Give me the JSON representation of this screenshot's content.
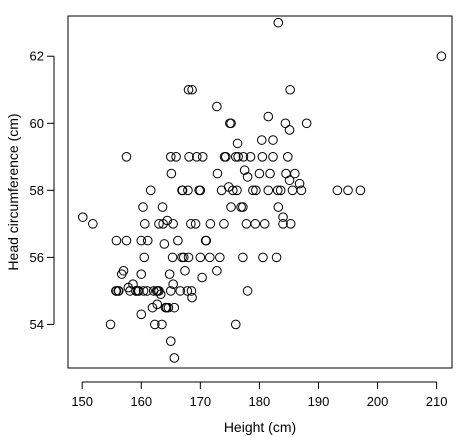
{
  "chart_data": {
    "type": "scatter",
    "title": "",
    "xlabel": "Height (cm)",
    "ylabel": "Head circumference (cm)",
    "xlim": [
      147.6,
      212.6
    ],
    "ylim": [
      52.7,
      63.2
    ],
    "xticks": [
      150,
      160,
      170,
      180,
      190,
      200,
      210
    ],
    "yticks": [
      54,
      56,
      58,
      60,
      62
    ],
    "grid": false,
    "legend": "none",
    "marker": "open-circle",
    "colors": {
      "marker": "#000000",
      "axis": "#000000",
      "background": "#ffffff"
    },
    "x": [
      150.1,
      151.8,
      154.8,
      155.7,
      155.8,
      156.7,
      157.8,
      157.5,
      155.8,
      156.2,
      157.5,
      158.1,
      158.6,
      159.1,
      159.1,
      160.0,
      159.6,
      160.4,
      160.0,
      160.0,
      160.3,
      160.6,
      161.1,
      161.6,
      162.1,
      162.8,
      162.7,
      163.3,
      163.7,
      163.6,
      163.9,
      164.4,
      163.5,
      162.3,
      162.6,
      163.0,
      164.3,
      164.8,
      165.0,
      165.3,
      165.6,
      165.0,
      165.4,
      165.9,
      166.2,
      166.9,
      167.0,
      167.2,
      167.4,
      167.8,
      168.0,
      168.4,
      168.6,
      169.2,
      169.4,
      169.8,
      170.0,
      170.3,
      170.9,
      171.6,
      171.7,
      172.8,
      173.3,
      173.6,
      174.3,
      174.8,
      175.2,
      175.5,
      176.0,
      176.3,
      176.9,
      177.2,
      177.5,
      178.0,
      178.5,
      178.9,
      179.3,
      179.4,
      180.0,
      180.4,
      180.6,
      180.9,
      181.5,
      181.8,
      182.3,
      182.9,
      183.2,
      183.6,
      184.0,
      184.4,
      184.8,
      185.1,
      185.3,
      185.6,
      186.0,
      186.8,
      187.1,
      188.0,
      193.2,
      195.0,
      197.1,
      210.8,
      172.8,
      168.6,
      168.0,
      183.2,
      185.2,
      176.0,
      178.0,
      175.2,
      164.6,
      165.6,
      168.1,
      167.9,
      177.2,
      177.8,
      172.9,
      170.4,
      174.1,
      176.2,
      180.5,
      181.5,
      182.3,
      183.1,
      184.0,
      184.5,
      185.1,
      174.0,
      170.0,
      171.0,
      168.5,
      166.6,
      165.4,
      165.0,
      164.1,
      163.0,
      161.9,
      161.0,
      160.5,
      159.4,
      157.0,
      156.1,
      165.1,
      166.9,
      175.0,
      176.4,
      177.3
    ],
    "y": [
      57.2,
      57.0,
      54.0,
      55.0,
      56.5,
      55.5,
      55.1,
      59.0,
      55.0,
      55.0,
      56.5,
      55.0,
      55.2,
      55.0,
      55.0,
      55.5,
      55.0,
      55.0,
      54.3,
      56.5,
      57.5,
      57.0,
      56.5,
      58.0,
      55.0,
      55.0,
      54.6,
      54.9,
      57.0,
      57.5,
      56.4,
      57.1,
      54.0,
      54.0,
      55.0,
      57.0,
      54.5,
      55.5,
      59.0,
      56.0,
      53.0,
      53.5,
      57.0,
      59.0,
      56.5,
      56.0,
      58.0,
      56.0,
      55.6,
      55.0,
      56.0,
      57.0,
      54.8,
      57.0,
      59.0,
      58.0,
      56.0,
      55.4,
      56.5,
      56.0,
      57.0,
      55.6,
      56.0,
      58.0,
      59.0,
      58.1,
      57.5,
      58.0,
      59.0,
      59.4,
      57.5,
      56.0,
      58.6,
      58.4,
      59.0,
      58.0,
      57.0,
      58.0,
      58.5,
      59.5,
      56.0,
      57.0,
      58.0,
      58.5,
      59.0,
      56.0,
      57.5,
      58.0,
      57.0,
      60.0,
      59.0,
      59.8,
      57.0,
      58.0,
      58.5,
      58.2,
      58.0,
      60.0,
      58.0,
      58.0,
      58.0,
      62.0,
      60.5,
      61.0,
      61.0,
      63.0,
      61.0,
      54.0,
      55.0,
      60.0,
      54.5,
      54.5,
      59.0,
      58.0,
      57.5,
      57.0,
      58.5,
      59.0,
      59.0,
      58.0,
      59.0,
      60.2,
      59.5,
      58.0,
      57.2,
      58.5,
      58.3,
      57.0,
      58.0,
      56.5,
      55.0,
      55.0,
      55.2,
      55.0,
      54.5,
      55.0,
      54.5,
      55.0,
      56.0,
      55.0,
      55.6,
      55.0,
      58.5,
      58.0,
      60.0,
      59.0,
      59.0
    ]
  }
}
